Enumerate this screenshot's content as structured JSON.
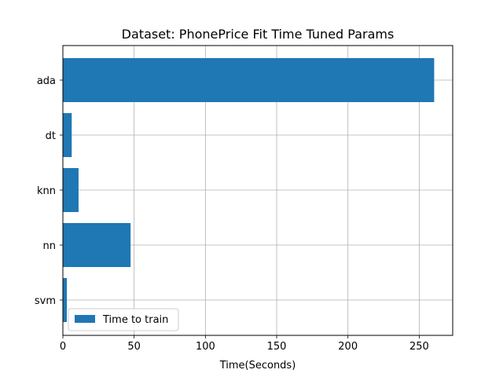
{
  "chart_data": {
    "type": "bar",
    "orientation": "horizontal",
    "title": "Dataset: PhonePrice Fit Time Tuned Params",
    "xlabel": "Time(Seconds)",
    "ylabel": "",
    "categories": [
      "ada",
      "dt",
      "knn",
      "nn",
      "svm"
    ],
    "series": [
      {
        "name": "Time to train",
        "values": [
          260.5,
          6.2,
          11.0,
          47.5,
          2.8
        ],
        "color": "#1f77b4"
      }
    ],
    "xlim": [
      0,
      273.5
    ],
    "xticks": [
      0,
      50,
      100,
      150,
      200,
      250
    ],
    "grid": true,
    "legend": {
      "location": "lower-left",
      "entries": [
        "Time to train"
      ]
    }
  }
}
